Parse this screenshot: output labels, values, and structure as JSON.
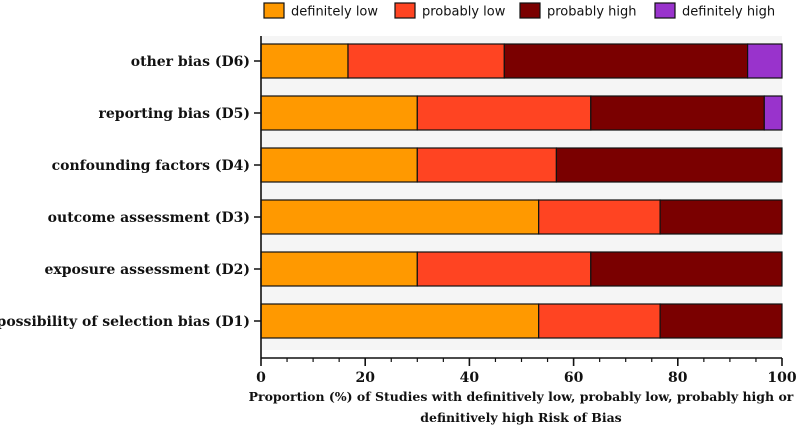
{
  "chart_data": {
    "type": "bar",
    "orientation": "horizontal",
    "stacked": true,
    "categories": [
      "other bias (D6)",
      "reporting bias (D5)",
      "confounding factors (D4)",
      "outcome assessment (D3)",
      "exposure assessment (D2)",
      "possibility of selection bias (D1)"
    ],
    "series": [
      {
        "name": "definitely low",
        "color": "#FF9900",
        "values": [
          16.7,
          30,
          30,
          53.3,
          30,
          53.3
        ]
      },
      {
        "name": "probably low",
        "color": "#FF4422",
        "values": [
          30,
          33.3,
          26.7,
          23.3,
          33.3,
          23.3
        ]
      },
      {
        "name": "probably high",
        "color": "#7A0000",
        "values": [
          46.7,
          33.3,
          43.3,
          23.4,
          36.7,
          23.4
        ]
      },
      {
        "name": "definitely high",
        "color": "#9933CC",
        "values": [
          6.6,
          3.4,
          0,
          0,
          0,
          0
        ]
      }
    ],
    "xlabel_line1": "Proportion (%) of Studies with definitively low, probably low, probably high or",
    "xlabel_line2": "definitively high Risk of Bias",
    "xlim": [
      0,
      100
    ],
    "xticks": [
      0,
      20,
      40,
      60,
      80,
      100
    ],
    "legend_position": "top",
    "background_color": "#F5F5F5"
  }
}
